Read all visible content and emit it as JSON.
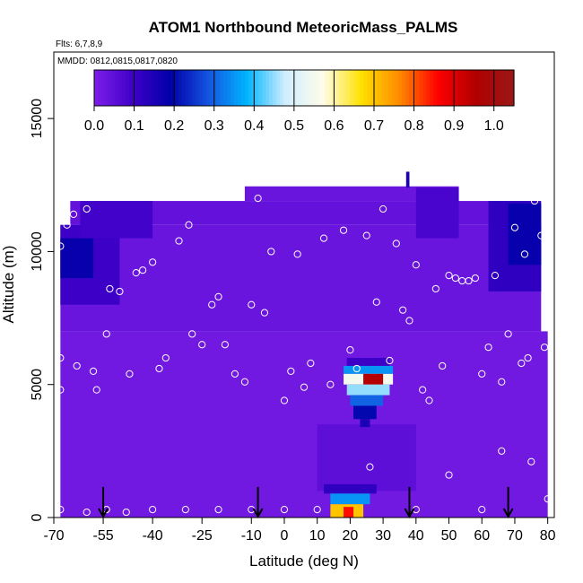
{
  "chart_data": {
    "type": "heatmap",
    "title": "ATOM1 Northbound MeteoricMass_PALMS",
    "flights_note": "Flts: 6,7,8,9",
    "dates_note": "MMDD: 0812,0815,0817,0820",
    "xlabel": "Latitude (deg N)",
    "ylabel": "Altitude (m)",
    "xlim": [
      -70,
      82
    ],
    "ylim": [
      0,
      17500
    ],
    "x_ticks": [
      -70,
      -55,
      -40,
      -25,
      -10,
      0,
      10,
      20,
      30,
      40,
      50,
      60,
      70,
      80
    ],
    "x_tick_labels": [
      "-70",
      "-55",
      "-40",
      "-25",
      "-10",
      "0",
      "10",
      "20",
      "30",
      "40",
      "50",
      "60",
      "70",
      "80"
    ],
    "y_ticks": [
      0,
      5000,
      10000,
      15000
    ],
    "y_tick_labels": [
      "0",
      "5000",
      "10000",
      "15000"
    ],
    "colorbar": {
      "ticks": [
        0.0,
        0.1,
        0.2,
        0.3,
        0.4,
        0.5,
        0.6,
        0.7,
        0.8,
        0.9,
        1.0
      ],
      "tick_labels": [
        "0.0",
        "0.1",
        "0.2",
        "0.3",
        "0.4",
        "0.5",
        "0.6",
        "0.7",
        "0.8",
        "0.9",
        "1.0"
      ],
      "range": [
        0,
        1.05
      ],
      "colors": [
        "#7e1ee8",
        "#3f00c8",
        "#0000a8",
        "#1455e0",
        "#00b4ff",
        "#cfeeff",
        "#fffce8",
        "#ffe100",
        "#ff8a00",
        "#ff0000",
        "#b00000",
        "#9a1818"
      ]
    },
    "field_color": "#8424f2",
    "regions": [
      {
        "xmin": -68,
        "xmax": 80,
        "ymin": 0,
        "ymax": 7000,
        "value": 0.02
      },
      {
        "xmin": -68,
        "xmax": 78,
        "ymin": 7000,
        "ymax": 11000,
        "value": 0.03
      },
      {
        "xmin": -65,
        "xmax": 75,
        "ymin": 11000,
        "ymax": 11900,
        "value": 0.04
      },
      {
        "xmin": -12,
        "xmax": 53,
        "ymin": 11900,
        "ymax": 12450,
        "value": 0.03
      },
      {
        "xmin": -68,
        "xmax": -50,
        "ymin": 8000,
        "ymax": 11000,
        "value": 0.1
      },
      {
        "xmin": -68,
        "xmax": -58,
        "ymin": 9000,
        "ymax": 10500,
        "value": 0.18
      },
      {
        "xmin": -62,
        "xmax": -40,
        "ymin": 10500,
        "ymax": 11900,
        "value": 0.09
      },
      {
        "xmin": 62,
        "xmax": 78,
        "ymin": 8500,
        "ymax": 11900,
        "value": 0.12
      },
      {
        "xmin": 68,
        "xmax": 78,
        "ymin": 9500,
        "ymax": 11800,
        "value": 0.18
      },
      {
        "xmin": 40,
        "xmax": 53,
        "ymin": 10500,
        "ymax": 12400,
        "value": 0.08
      },
      {
        "xmin": 10,
        "xmax": 40,
        "ymin": 1000,
        "ymax": 3500,
        "value": 0.05
      },
      {
        "xmin": 37,
        "xmax": 38,
        "ymin": 12400,
        "ymax": 13000,
        "value": 0.15
      },
      {
        "xmin": 19,
        "xmax": 32,
        "ymin": 5700,
        "ymax": 6000,
        "value": 0.1
      },
      {
        "xmin": 18,
        "xmax": 33,
        "ymin": 5400,
        "ymax": 5700,
        "value": 0.35
      },
      {
        "xmin": 18,
        "xmax": 33,
        "ymin": 5000,
        "ymax": 5400,
        "value": 0.55
      },
      {
        "xmin": 24,
        "xmax": 30,
        "ymin": 5000,
        "ymax": 5400,
        "value": 0.95
      },
      {
        "xmin": 19,
        "xmax": 32,
        "ymin": 4600,
        "ymax": 5000,
        "value": 0.45
      },
      {
        "xmin": 20,
        "xmax": 30,
        "ymin": 4200,
        "ymax": 4600,
        "value": 0.3
      },
      {
        "xmin": 21,
        "xmax": 28,
        "ymin": 3700,
        "ymax": 4200,
        "value": 0.2
      },
      {
        "xmin": 23,
        "xmax": 26,
        "ymin": 3400,
        "ymax": 3700,
        "value": 0.15
      },
      {
        "xmin": 12,
        "xmax": 28,
        "ymin": 900,
        "ymax": 1250,
        "value": 0.12
      },
      {
        "xmin": 14,
        "xmax": 26,
        "ymin": 500,
        "ymax": 900,
        "value": 0.35
      },
      {
        "xmin": 14,
        "xmax": 24,
        "ymin": 0,
        "ymax": 500,
        "value": 0.7
      },
      {
        "xmin": 18,
        "xmax": 21,
        "ymin": 0,
        "ymax": 400,
        "value": 0.85
      }
    ],
    "profile_markers": [
      {
        "lat": -68,
        "alt": 10200
      },
      {
        "lat": -66,
        "alt": 11000
      },
      {
        "lat": -64,
        "alt": 11400
      },
      {
        "lat": -60,
        "alt": 11600
      },
      {
        "lat": -68,
        "alt": 6000
      },
      {
        "lat": -68,
        "alt": 4800
      },
      {
        "lat": -63,
        "alt": 5700
      },
      {
        "lat": -58,
        "alt": 5500
      },
      {
        "lat": -57,
        "alt": 4800
      },
      {
        "lat": -54,
        "alt": 6900
      },
      {
        "lat": -53,
        "alt": 8600
      },
      {
        "lat": -50,
        "alt": 8500
      },
      {
        "lat": -47,
        "alt": 5400
      },
      {
        "lat": -45,
        "alt": 9200
      },
      {
        "lat": -43,
        "alt": 9300
      },
      {
        "lat": -40,
        "alt": 9600
      },
      {
        "lat": -38,
        "alt": 5600
      },
      {
        "lat": -36,
        "alt": 6000
      },
      {
        "lat": -32,
        "alt": 10400
      },
      {
        "lat": -29,
        "alt": 11000
      },
      {
        "lat": -28,
        "alt": 6900
      },
      {
        "lat": -25,
        "alt": 6500
      },
      {
        "lat": -22,
        "alt": 8000
      },
      {
        "lat": -20,
        "alt": 8300
      },
      {
        "lat": -18,
        "alt": 6500
      },
      {
        "lat": -15,
        "alt": 5400
      },
      {
        "lat": -12,
        "alt": 5100
      },
      {
        "lat": -10,
        "alt": 8000
      },
      {
        "lat": -8,
        "alt": 12000
      },
      {
        "lat": -6,
        "alt": 7700
      },
      {
        "lat": -4,
        "alt": 10000
      },
      {
        "lat": 0,
        "alt": 4400
      },
      {
        "lat": 2,
        "alt": 5500
      },
      {
        "lat": 4,
        "alt": 9900
      },
      {
        "lat": 6,
        "alt": 4900
      },
      {
        "lat": 8,
        "alt": 5800
      },
      {
        "lat": 12,
        "alt": 10500
      },
      {
        "lat": 14,
        "alt": 5000
      },
      {
        "lat": 18,
        "alt": 10800
      },
      {
        "lat": 20,
        "alt": 6300
      },
      {
        "lat": 22,
        "alt": 5600
      },
      {
        "lat": 25,
        "alt": 10600
      },
      {
        "lat": 28,
        "alt": 8100
      },
      {
        "lat": 30,
        "alt": 11600
      },
      {
        "lat": 32,
        "alt": 5900
      },
      {
        "lat": 34,
        "alt": 10300
      },
      {
        "lat": 36,
        "alt": 7800
      },
      {
        "lat": 38,
        "alt": 7400
      },
      {
        "lat": 40,
        "alt": 9500
      },
      {
        "lat": 42,
        "alt": 4800
      },
      {
        "lat": 44,
        "alt": 4400
      },
      {
        "lat": 46,
        "alt": 8600
      },
      {
        "lat": 48,
        "alt": 5700
      },
      {
        "lat": 50,
        "alt": 9100
      },
      {
        "lat": 52,
        "alt": 9000
      },
      {
        "lat": 54,
        "alt": 8900
      },
      {
        "lat": 56,
        "alt": 8900
      },
      {
        "lat": 58,
        "alt": 9000
      },
      {
        "lat": 60,
        "alt": 5400
      },
      {
        "lat": 62,
        "alt": 6400
      },
      {
        "lat": 64,
        "alt": 9100
      },
      {
        "lat": 66,
        "alt": 5100
      },
      {
        "lat": 68,
        "alt": 6900
      },
      {
        "lat": 70,
        "alt": 10900
      },
      {
        "lat": 72,
        "alt": 5800
      },
      {
        "lat": 73,
        "alt": 9900
      },
      {
        "lat": 74,
        "alt": 6000
      },
      {
        "lat": 75,
        "alt": 2100
      },
      {
        "lat": 76,
        "alt": 11900
      },
      {
        "lat": 78,
        "alt": 10600
      },
      {
        "lat": 79,
        "alt": 6400
      },
      {
        "lat": 80,
        "alt": 700
      },
      {
        "lat": -68,
        "alt": 300
      },
      {
        "lat": -60,
        "alt": 200
      },
      {
        "lat": -54,
        "alt": 300
      },
      {
        "lat": -48,
        "alt": 200
      },
      {
        "lat": -40,
        "alt": 300
      },
      {
        "lat": -30,
        "alt": 300
      },
      {
        "lat": -20,
        "alt": 300
      },
      {
        "lat": -10,
        "alt": 300
      },
      {
        "lat": 0,
        "alt": 300
      },
      {
        "lat": 10,
        "alt": 300
      },
      {
        "lat": 26,
        "alt": 1900
      },
      {
        "lat": 40,
        "alt": 300
      },
      {
        "lat": 50,
        "alt": 1600
      },
      {
        "lat": 60,
        "alt": 300
      },
      {
        "lat": 66,
        "alt": 2500
      }
    ],
    "arrow_latitudes": [
      -55,
      -8,
      38,
      68
    ]
  }
}
